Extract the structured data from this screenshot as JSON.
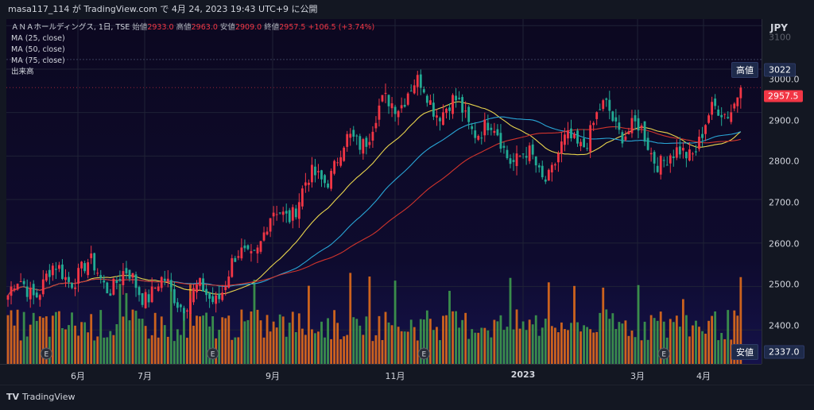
{
  "header": {
    "publish_line": "masa117_114 が TradingView.com で 4月 24, 2023 19:43 UTC+9 に公開"
  },
  "legend": {
    "symbol": "ＡＮＡホールディングス, 1日, TSE",
    "open_label": "始値",
    "open": "2933.0",
    "high_label": "高値",
    "high": "2963.0",
    "low_label": "安値",
    "low": "2909.0",
    "close_label": "終値",
    "close": "2957.5",
    "change": "+106.5 (+3.74%)",
    "ma1": "MA (25, close)",
    "ma2": "MA (50, close)",
    "ma3": "MA (75, close)",
    "volume": "出来高"
  },
  "y_axis": {
    "unit": "JPY",
    "ticks": [
      "3100",
      "3000.0",
      "2900.0",
      "2800.0",
      "2700.0",
      "2600.0",
      "2500.0",
      "2400.0"
    ]
  },
  "price_tags": {
    "high_label": "高値",
    "high_value": "3022",
    "current": "2957.5",
    "low_label": "安値",
    "low_value": "2337.0"
  },
  "x_axis": {
    "ticks": [
      "6月",
      "7月",
      "9月",
      "11月",
      "2023",
      "3月",
      "4月"
    ]
  },
  "footer": {
    "brand": "TradingView",
    "logo_mark": "TV"
  },
  "earnings_marker": "E",
  "colors": {
    "up": "#f23645",
    "down": "#22ab94",
    "ma25": "#e8d44d",
    "ma50": "#29a6d6",
    "ma75": "#d0342c",
    "vol_up": "#e06c1b",
    "vol_down": "#3e9a4e"
  },
  "chart_data": {
    "type": "candlestick",
    "interval": "1D",
    "y_range": [
      2337,
      3110
    ],
    "x_axis_ticks": [
      "6月",
      "7月",
      "9月",
      "11月",
      "2023",
      "3月",
      "4月"
    ],
    "keypoints": [
      {
        "date": "2022-05",
        "close": 2480
      },
      {
        "date": "2022-06",
        "close": 2540
      },
      {
        "date": "2022-07",
        "close": 2500
      },
      {
        "date": "2022-08",
        "close": 2470
      },
      {
        "date": "2022-09",
        "close": 2650
      },
      {
        "date": "2022-10",
        "close": 2800
      },
      {
        "date": "2022-11",
        "close": 2960
      },
      {
        "date": "2022-12",
        "close": 2880
      },
      {
        "date": "2023-01",
        "close": 2760
      },
      {
        "date": "2023-02",
        "close": 2900
      },
      {
        "date": "2023-03",
        "close": 2780
      },
      {
        "date": "2023-04",
        "close": 2957.5
      }
    ],
    "last_bar": {
      "open": 2933.0,
      "high": 2963.0,
      "low": 2909.0,
      "close": 2957.5,
      "change": 106.5,
      "change_pct": 3.74
    },
    "range_high": 3022,
    "range_low": 2337.0,
    "moving_averages": [
      "MA (25, close)",
      "MA (50, close)",
      "MA (75, close)"
    ],
    "earnings_events": 4
  }
}
